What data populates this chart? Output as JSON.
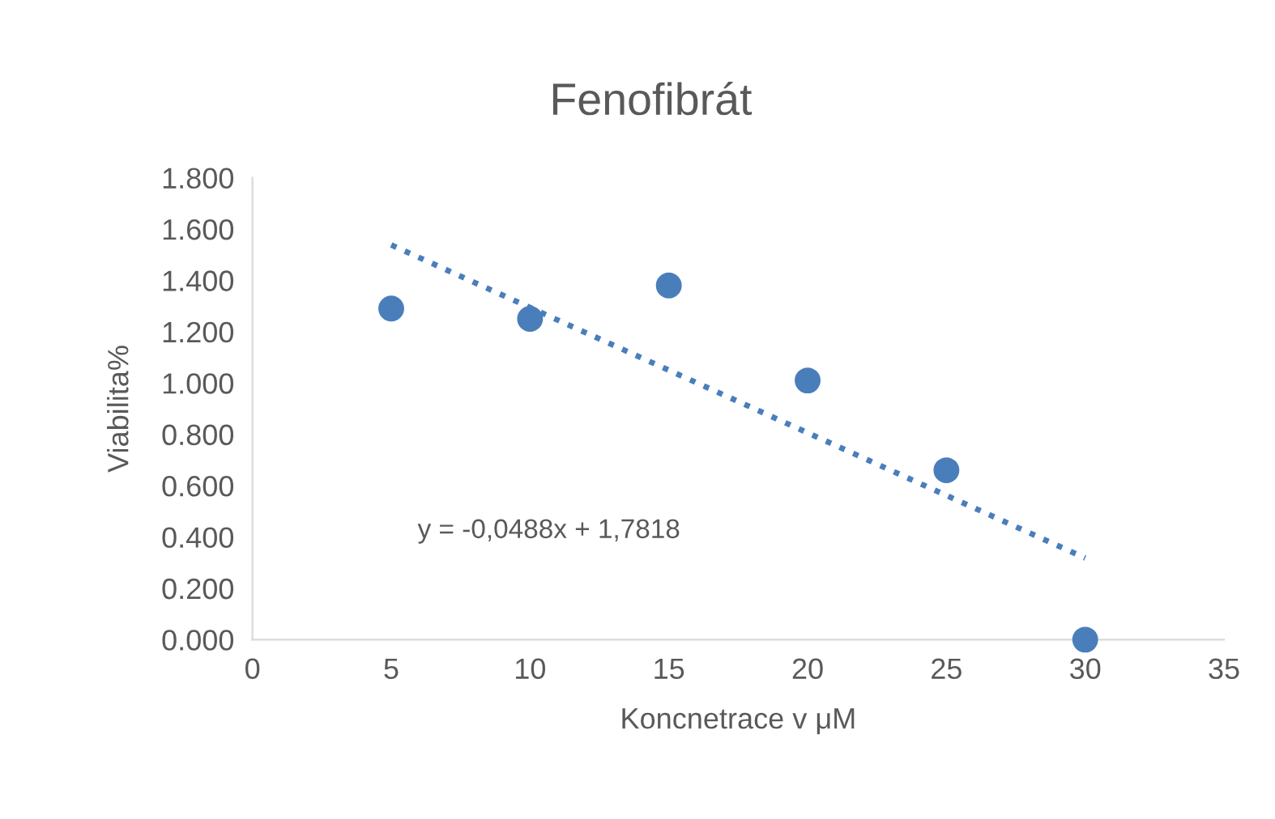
{
  "chart_data": {
    "type": "scatter",
    "title": "Fenofibrát",
    "xlabel": "Koncnetrace v μM",
    "ylabel": "Viabilita%",
    "x": [
      5,
      10,
      15,
      20,
      25,
      30
    ],
    "series": [
      {
        "color": "#4a7ebb",
        "marker": "circle",
        "values": [
          1.29,
          1.25,
          1.38,
          1.01,
          0.66,
          0.0
        ]
      },
      {
        "type": "line",
        "color": "#4a7ebb",
        "line_style": "dotted",
        "marker": "none",
        "x": [
          5,
          30
        ],
        "values": [
          1.538,
          0.318
        ]
      }
    ],
    "annotations": [
      "y = -0,0488x + 1,7818"
    ],
    "xlim": [
      0,
      35
    ],
    "xticks": [
      0,
      5,
      10,
      15,
      20,
      25,
      30,
      35
    ],
    "ylim": [
      0,
      1.8
    ],
    "yticks": [
      {
        "value": 0,
        "label": "0.000"
      },
      {
        "value": 0.2,
        "label": "0.200"
      },
      {
        "value": 0.4,
        "label": "0.400"
      },
      {
        "value": 0.6,
        "label": "0.600"
      },
      {
        "value": 0.8,
        "label": "0.800"
      },
      {
        "value": 1.0,
        "label": "1.000"
      },
      {
        "value": 1.2,
        "label": "1.200"
      },
      {
        "value": 1.4,
        "label": "1.400"
      },
      {
        "value": 1.6,
        "label": "1.600"
      },
      {
        "value": 1.8,
        "label": "1.800"
      }
    ],
    "grid": false
  }
}
